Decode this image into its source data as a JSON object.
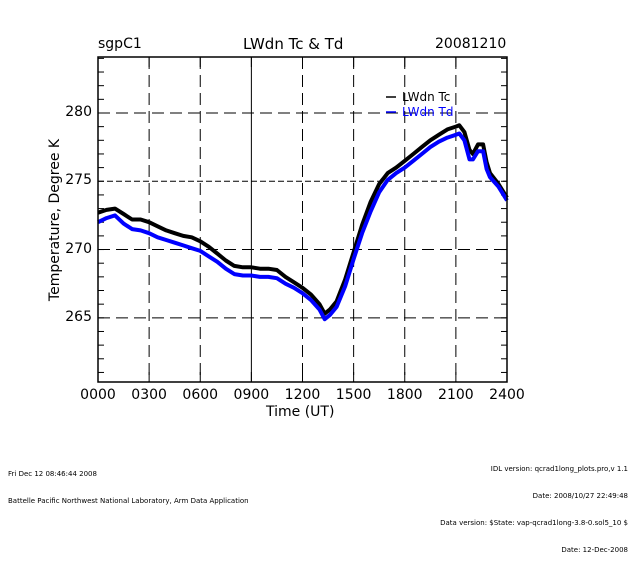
{
  "header": {
    "site": "sgpC1",
    "title": "LWdn Tc & Td",
    "date": "20081210"
  },
  "footer": {
    "left_lines": [
      "Fri Dec 12 08:46:44 2008",
      "Battelle Pacific Northwest National Laboratory, Arm Data Application"
    ],
    "right_lines": [
      "IDL version: qcrad1long_plots.pro,v 1.1",
      "Date: 2008/10/27 22:49:48",
      "Data version: $State: vap-qcrad1long-3.8-0.sol5_10 $",
      "Date: 12-Dec-2008"
    ]
  },
  "chart_data": {
    "type": "line",
    "title": "LWdn Tc & Td",
    "xlabel": "Time (UT)",
    "ylabel": "Temperature, Degree K",
    "xlim": [
      0,
      24
    ],
    "ylim": [
      260.3,
      284.1
    ],
    "x_ticks": [
      0,
      3,
      6,
      9,
      12,
      15,
      18,
      21,
      24
    ],
    "x_tick_labels": [
      "0000",
      "0300",
      "0600",
      "0900",
      "1200",
      "1500",
      "1800",
      "2100",
      "2400"
    ],
    "y_ticks": [
      265,
      270,
      275,
      280
    ],
    "y_tick_labels": [
      "265",
      "270",
      "275",
      "280"
    ],
    "grid": true,
    "legend_position": "top-right",
    "series": [
      {
        "name": "LWdn Tc",
        "color": "#000000",
        "x": [
          0,
          0.5,
          1.0,
          1.5,
          2.0,
          2.5,
          3.0,
          3.5,
          4.0,
          4.5,
          5.0,
          5.5,
          6.0,
          6.5,
          7.0,
          7.5,
          8.0,
          8.5,
          9.0,
          9.5,
          10.0,
          10.5,
          11.0,
          11.5,
          12.0,
          12.5,
          13.0,
          13.3,
          13.6,
          14.0,
          14.5,
          15.0,
          15.5,
          16.0,
          16.5,
          17.0,
          17.5,
          18.0,
          18.5,
          19.0,
          19.5,
          20.0,
          20.5,
          21.0,
          21.2,
          21.5,
          21.8,
          22.0,
          22.3,
          22.6,
          22.8,
          23.0,
          23.5,
          24.0
        ],
        "values": [
          272.7,
          272.9,
          273.0,
          272.6,
          272.2,
          272.2,
          272.0,
          271.7,
          271.4,
          271.2,
          271.0,
          270.9,
          270.6,
          270.2,
          269.7,
          269.2,
          268.8,
          268.7,
          268.7,
          268.6,
          268.6,
          268.5,
          268.0,
          267.6,
          267.2,
          266.7,
          266.0,
          265.3,
          265.6,
          266.2,
          267.8,
          269.8,
          271.8,
          273.5,
          274.8,
          275.6,
          276.0,
          276.5,
          277.0,
          277.5,
          278.0,
          278.4,
          278.8,
          279.0,
          279.1,
          278.6,
          277.3,
          277.0,
          277.7,
          277.7,
          276.4,
          275.6,
          274.8,
          273.8
        ]
      },
      {
        "name": "LWdn Td",
        "color": "#0000ff",
        "x": [
          0,
          0.5,
          1.0,
          1.5,
          2.0,
          2.5,
          3.0,
          3.5,
          4.0,
          4.5,
          5.0,
          5.5,
          6.0,
          6.5,
          7.0,
          7.5,
          8.0,
          8.5,
          9.0,
          9.5,
          10.0,
          10.5,
          11.0,
          11.5,
          12.0,
          12.5,
          13.0,
          13.3,
          13.6,
          14.0,
          14.5,
          15.0,
          15.5,
          16.0,
          16.5,
          17.0,
          17.5,
          18.0,
          18.5,
          19.0,
          19.5,
          20.0,
          20.5,
          21.0,
          21.2,
          21.5,
          21.8,
          22.0,
          22.3,
          22.6,
          22.8,
          23.0,
          23.5,
          24.0
        ],
        "values": [
          272.0,
          272.3,
          272.5,
          271.9,
          271.5,
          271.4,
          271.2,
          270.9,
          270.7,
          270.5,
          270.3,
          270.1,
          269.9,
          269.5,
          269.1,
          268.6,
          268.2,
          268.1,
          268.1,
          268.0,
          268.0,
          267.9,
          267.5,
          267.2,
          266.8,
          266.3,
          265.6,
          264.9,
          265.2,
          265.8,
          267.3,
          269.3,
          271.2,
          272.8,
          274.2,
          275.1,
          275.6,
          276.0,
          276.5,
          277.0,
          277.5,
          277.9,
          278.2,
          278.4,
          278.5,
          278.0,
          276.6,
          276.6,
          277.2,
          277.2,
          275.9,
          275.3,
          274.6,
          273.6
        ]
      }
    ]
  }
}
